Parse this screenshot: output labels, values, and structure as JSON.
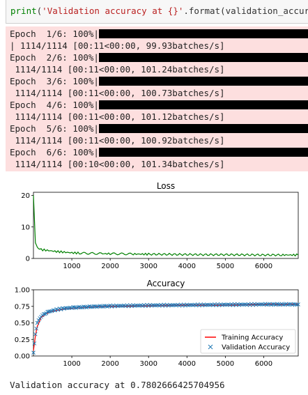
{
  "code_cell": {
    "func": "print",
    "open": "(",
    "string": "'Validation accuracy at {}'",
    "rest": ".format(validation_accuracy)"
  },
  "progress": [
    {
      "label": "Epoch  1/6: 100%|",
      "stats": "| 1114/1114 [00:11<00:00, 99.93batches/s]"
    },
    {
      "label": "Epoch  2/6: 100%|",
      "stats": " 1114/1114 [00:11<00:00, 101.24batches/s]"
    },
    {
      "label": "Epoch  3/6: 100%|",
      "stats": " 1114/1114 [00:11<00:00, 100.73batches/s]"
    },
    {
      "label": "Epoch  4/6: 100%|",
      "stats": " 1114/1114 [00:11<00:00, 101.12batches/s]"
    },
    {
      "label": "Epoch  5/6: 100%|",
      "stats": " 1114/1114 [00:11<00:00, 100.92batches/s]"
    },
    {
      "label": "Epoch  6/6: 100%|",
      "stats": " 1114/1114 [00:10<00:00, 101.34batches/s]"
    }
  ],
  "chart_data": [
    {
      "type": "line",
      "title": "Loss",
      "xlim": [
        0,
        6900
      ],
      "ylim": [
        0,
        21
      ],
      "xticks": [
        1000,
        2000,
        3000,
        4000,
        5000,
        6000
      ],
      "yticks": [
        0,
        10,
        20
      ],
      "grid": false,
      "series": [
        {
          "color": "#008000",
          "x": [
            0,
            50,
            100,
            200,
            400,
            600,
            800,
            1000,
            1200,
            1500,
            1800,
            2000,
            2300,
            2600,
            3000,
            3500,
            4000,
            4500,
            5000,
            5500,
            6000,
            6500,
            6900
          ],
          "y": [
            20,
            5,
            3.6,
            2.8,
            2.5,
            2.2,
            2.0,
            1.8,
            1.7,
            1.6,
            1.5,
            1.5,
            1.45,
            1.4,
            1.35,
            1.3,
            1.25,
            1.2,
            1.2,
            1.15,
            1.1,
            1.1,
            1.1
          ]
        }
      ]
    },
    {
      "type": "line",
      "title": "Accuracy",
      "xlim": [
        0,
        6900
      ],
      "ylim": [
        0,
        1.0
      ],
      "xticks": [
        1000,
        2000,
        3000,
        4000,
        5000,
        6000
      ],
      "yticks": [
        "0.00",
        "0.25",
        "0.50",
        "0.75",
        "1.00"
      ],
      "grid": false,
      "legend": "bottom-right",
      "series": [
        {
          "name": "Training Accuracy",
          "color": "#ff0000",
          "x": [
            0,
            50,
            100,
            200,
            300,
            400,
            600,
            800,
            1000,
            1500,
            2000,
            3000,
            4000,
            5000,
            6000,
            6900
          ],
          "y": [
            0.08,
            0.3,
            0.45,
            0.58,
            0.63,
            0.66,
            0.69,
            0.71,
            0.72,
            0.74,
            0.75,
            0.76,
            0.77,
            0.77,
            0.78,
            0.78
          ]
        },
        {
          "name": "Validation Accuracy",
          "color": "#1f77b4",
          "marker": "x",
          "x": [
            0,
            50,
            100,
            200,
            300,
            400,
            600,
            800,
            1000,
            1500,
            2000,
            3000,
            4000,
            5000,
            6000,
            6900
          ],
          "y": [
            0.05,
            0.33,
            0.5,
            0.6,
            0.64,
            0.67,
            0.7,
            0.72,
            0.73,
            0.745,
            0.755,
            0.765,
            0.77,
            0.775,
            0.78,
            0.78
          ]
        }
      ]
    }
  ],
  "result": {
    "text": "Validation accuracy at 0.7802666425704956"
  }
}
